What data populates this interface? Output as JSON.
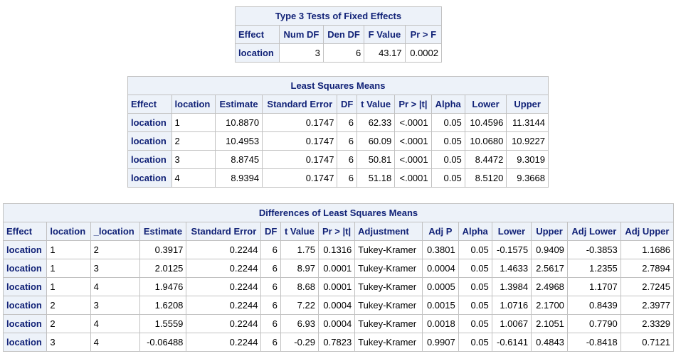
{
  "type3": {
    "caption": "Type 3 Tests of Fixed Effects",
    "columns": [
      "Effect",
      "Num DF",
      "Den DF",
      "F Value",
      "Pr > F"
    ],
    "rows": [
      [
        "location",
        "3",
        "6",
        "43.17",
        "0.0002"
      ]
    ]
  },
  "lsmeans": {
    "caption": "Least Squares Means",
    "columns": [
      "Effect",
      "location",
      "Estimate",
      "Standard Error",
      "DF",
      "t Value",
      "Pr > |t|",
      "Alpha",
      "Lower",
      "Upper"
    ],
    "rows": [
      [
        "location",
        "1",
        "10.8870",
        "0.1747",
        "6",
        "62.33",
        "<.0001",
        "0.05",
        "10.4596",
        "11.3144"
      ],
      [
        "location",
        "2",
        "10.4953",
        "0.1747",
        "6",
        "60.09",
        "<.0001",
        "0.05",
        "10.0680",
        "10.9227"
      ],
      [
        "location",
        "3",
        "8.8745",
        "0.1747",
        "6",
        "50.81",
        "<.0001",
        "0.05",
        "8.4472",
        "9.3019"
      ],
      [
        "location",
        "4",
        "8.9394",
        "0.1747",
        "6",
        "51.18",
        "<.0001",
        "0.05",
        "8.5120",
        "9.3668"
      ]
    ]
  },
  "diffs": {
    "caption": "Differences of Least Squares Means",
    "columns": [
      "Effect",
      "location",
      "_location",
      "Estimate",
      "Standard Error",
      "DF",
      "t Value",
      "Pr > |t|",
      "Adjustment",
      "Adj P",
      "Alpha",
      "Lower",
      "Upper",
      "Adj Lower",
      "Adj Upper"
    ],
    "rows": [
      [
        "location",
        "1",
        "2",
        "0.3917",
        "0.2244",
        "6",
        "1.75",
        "0.1316",
        "Tukey-Kramer",
        "0.3801",
        "0.05",
        "-0.1575",
        "0.9409",
        "-0.3853",
        "1.1686"
      ],
      [
        "location",
        "1",
        "3",
        "2.0125",
        "0.2244",
        "6",
        "8.97",
        "0.0001",
        "Tukey-Kramer",
        "0.0004",
        "0.05",
        "1.4633",
        "2.5617",
        "1.2355",
        "2.7894"
      ],
      [
        "location",
        "1",
        "4",
        "1.9476",
        "0.2244",
        "6",
        "8.68",
        "0.0001",
        "Tukey-Kramer",
        "0.0005",
        "0.05",
        "1.3984",
        "2.4968",
        "1.1707",
        "2.7245"
      ],
      [
        "location",
        "2",
        "3",
        "1.6208",
        "0.2244",
        "6",
        "7.22",
        "0.0004",
        "Tukey-Kramer",
        "0.0015",
        "0.05",
        "1.0716",
        "2.1700",
        "0.8439",
        "2.3977"
      ],
      [
        "location",
        "2",
        "4",
        "1.5559",
        "0.2244",
        "6",
        "6.93",
        "0.0004",
        "Tukey-Kramer",
        "0.0018",
        "0.05",
        "1.0067",
        "2.1051",
        "0.7790",
        "2.3329"
      ],
      [
        "location",
        "3",
        "4",
        "-0.06488",
        "0.2244",
        "6",
        "-0.29",
        "0.7823",
        "Tukey-Kramer",
        "0.9907",
        "0.05",
        "-0.6141",
        "0.4843",
        "-0.8418",
        "0.7121"
      ]
    ]
  }
}
